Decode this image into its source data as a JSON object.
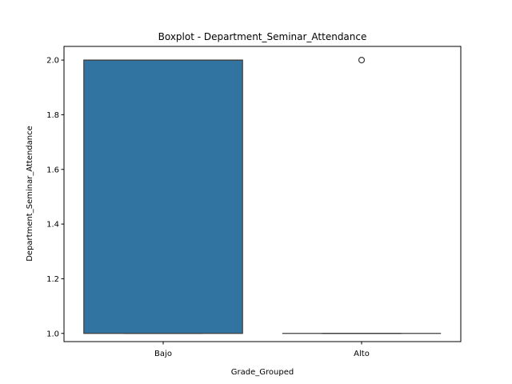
{
  "chart_data": {
    "type": "boxplot",
    "title": "Boxplot - Department_Seminar_Attendance",
    "xlabel": "Grade_Grouped",
    "ylabel": "Department_Seminar_Attendance",
    "categories": [
      "Bajo",
      "Alto"
    ],
    "ylim": [
      0.97,
      2.05
    ],
    "yticks": [
      1.0,
      1.2,
      1.4,
      1.6,
      1.8,
      2.0
    ],
    "ytick_labels": [
      "1.0",
      "1.2",
      "1.4",
      "1.6",
      "1.8",
      "2.0"
    ],
    "boxes": [
      {
        "category": "Bajo",
        "whisker_low": 1.0,
        "q1": 1.0,
        "median": 2.0,
        "q3": 2.0,
        "whisker_high": 2.0,
        "outliers": []
      },
      {
        "category": "Alto",
        "whisker_low": 1.0,
        "q1": 1.0,
        "median": 1.0,
        "q3": 1.0,
        "whisker_high": 1.0,
        "outliers": [
          2.0
        ]
      }
    ],
    "box_color": "#3274a1",
    "edge_color": "#3f3f3f",
    "grid": false,
    "legend": "none"
  }
}
